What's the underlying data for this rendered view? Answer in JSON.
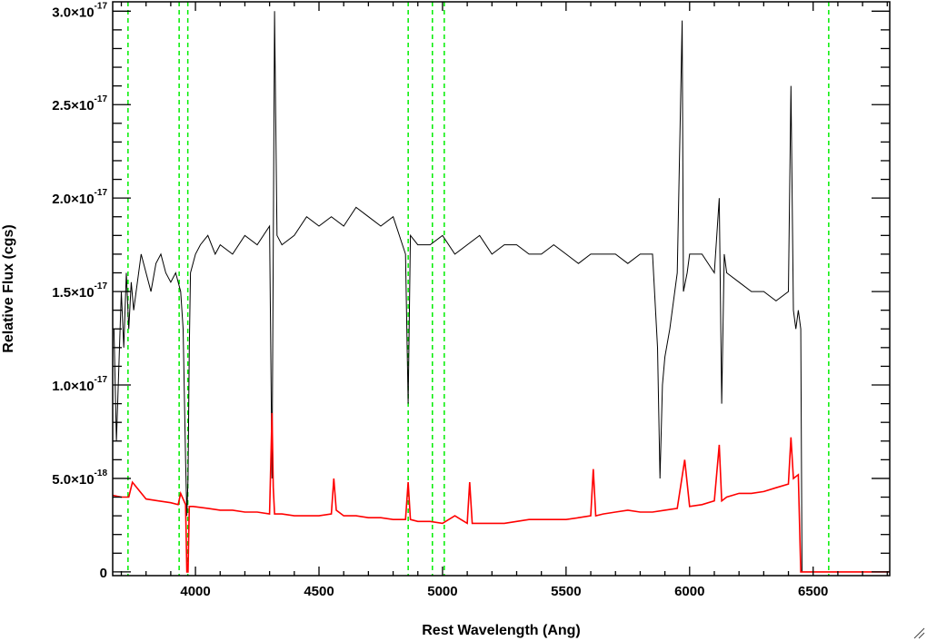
{
  "colors": {
    "spectrum": "#000000",
    "error": "#ff0000",
    "lines": "#00ee00",
    "background": "#ffffff"
  },
  "chart_data": {
    "type": "line",
    "title": "",
    "xlabel": "Rest Wavelength (Ang)",
    "ylabel": "Relative Flux (cgs)",
    "xlim": [
      3665,
      6810
    ],
    "ylim": [
      -0.02,
      3.05
    ],
    "y_scale_note": "values in units of 1e-17",
    "x_ticks": [
      4000,
      4500,
      5000,
      5500,
      6000,
      6500
    ],
    "x_tick_labels": [
      "4000",
      "4500",
      "5000",
      "5500",
      "6000",
      "6500"
    ],
    "y_ticks": [
      0,
      0.5,
      1.0,
      1.5,
      2.0,
      2.5,
      3.0
    ],
    "y_tick_labels": [
      {
        "mant": "0",
        "exp": ""
      },
      {
        "mant": "5.0×10",
        "exp": "-18"
      },
      {
        "mant": "1.0×10",
        "exp": "-17"
      },
      {
        "mant": "1.5×10",
        "exp": "-17"
      },
      {
        "mant": "2.0×10",
        "exp": "-17"
      },
      {
        "mant": "2.5×10",
        "exp": "-17"
      },
      {
        "mant": "3.0×10",
        "exp": "-17"
      }
    ],
    "vlines": [
      3727,
      3934,
      3969,
      4861,
      4959,
      5007,
      6563
    ],
    "series": [
      {
        "color": "#000000",
        "x": [
          3670,
          3680,
          3690,
          3700,
          3710,
          3720,
          3730,
          3740,
          3750,
          3760,
          3780,
          3800,
          3820,
          3840,
          3860,
          3880,
          3900,
          3920,
          3940,
          3950,
          3960,
          3965,
          3970,
          3975,
          3980,
          4000,
          4020,
          4050,
          4080,
          4100,
          4150,
          4200,
          4250,
          4300,
          4310,
          4320,
          4330,
          4350,
          4400,
          4450,
          4500,
          4550,
          4600,
          4650,
          4700,
          4750,
          4800,
          4850,
          4861,
          4870,
          4900,
          4950,
          5000,
          5050,
          5100,
          5150,
          5200,
          5250,
          5300,
          5350,
          5400,
          5450,
          5500,
          5550,
          5600,
          5650,
          5700,
          5750,
          5800,
          5850,
          5870,
          5880,
          5890,
          5900,
          5920,
          5950,
          5970,
          5975,
          5990,
          6000,
          6050,
          6100,
          6120,
          6130,
          6140,
          6150,
          6200,
          6250,
          6300,
          6350,
          6400,
          6410,
          6420,
          6430,
          6440,
          6450,
          6455
        ],
        "y": [
          1.3,
          0.7,
          1.1,
          1.5,
          1.2,
          1.6,
          1.3,
          1.55,
          1.4,
          1.5,
          1.7,
          1.6,
          1.5,
          1.65,
          1.7,
          1.6,
          1.55,
          1.6,
          1.5,
          1.3,
          0.6,
          0.3,
          0.5,
          1.2,
          1.6,
          1.7,
          1.75,
          1.8,
          1.7,
          1.75,
          1.7,
          1.8,
          1.75,
          1.85,
          0.5,
          3.0,
          1.8,
          1.75,
          1.8,
          1.9,
          1.85,
          1.9,
          1.85,
          1.95,
          1.9,
          1.85,
          1.9,
          1.7,
          0.9,
          1.8,
          1.75,
          1.75,
          1.8,
          1.7,
          1.75,
          1.8,
          1.7,
          1.75,
          1.75,
          1.7,
          1.7,
          1.75,
          1.7,
          1.65,
          1.7,
          1.7,
          1.7,
          1.65,
          1.7,
          1.7,
          1.2,
          0.5,
          1.0,
          1.15,
          1.3,
          1.6,
          2.95,
          1.5,
          1.6,
          1.7,
          1.7,
          1.6,
          2.0,
          0.9,
          1.7,
          1.6,
          1.55,
          1.5,
          1.5,
          1.45,
          1.5,
          2.6,
          1.4,
          1.3,
          1.4,
          1.3,
          0.0
        ]
      },
      {
        "color": "#ff0000",
        "x": [
          3665,
          3700,
          3730,
          3745,
          3800,
          3850,
          3900,
          3930,
          3940,
          3960,
          3965,
          3970,
          3975,
          3990,
          4050,
          4100,
          4150,
          4200,
          4250,
          4300,
          4310,
          4315,
          4320,
          4350,
          4400,
          4450,
          4500,
          4550,
          4560,
          4570,
          4600,
          4650,
          4700,
          4750,
          4800,
          4850,
          4861,
          4870,
          4900,
          4950,
          5000,
          5050,
          5100,
          5110,
          5120,
          5150,
          5200,
          5250,
          5300,
          5350,
          5400,
          5450,
          5500,
          5550,
          5600,
          5610,
          5620,
          5650,
          5700,
          5750,
          5800,
          5850,
          5900,
          5950,
          5980,
          6000,
          6050,
          6100,
          6120,
          6130,
          6150,
          6200,
          6250,
          6300,
          6350,
          6400,
          6410,
          6420,
          6440,
          6450,
          6455,
          6460,
          6470,
          6810
        ],
        "y": [
          0.41,
          0.4,
          0.4,
          0.48,
          0.39,
          0.38,
          0.37,
          0.36,
          0.42,
          0.36,
          0.0,
          0.0,
          0.35,
          0.35,
          0.34,
          0.33,
          0.33,
          0.32,
          0.32,
          0.31,
          0.85,
          0.45,
          0.31,
          0.31,
          0.3,
          0.3,
          0.3,
          0.31,
          0.5,
          0.33,
          0.3,
          0.3,
          0.29,
          0.29,
          0.28,
          0.28,
          0.48,
          0.28,
          0.27,
          0.27,
          0.26,
          0.3,
          0.26,
          0.48,
          0.26,
          0.26,
          0.26,
          0.26,
          0.27,
          0.28,
          0.28,
          0.28,
          0.28,
          0.29,
          0.3,
          0.55,
          0.3,
          0.31,
          0.32,
          0.33,
          0.32,
          0.32,
          0.33,
          0.34,
          0.6,
          0.35,
          0.36,
          0.38,
          0.68,
          0.38,
          0.4,
          0.42,
          0.42,
          0.43,
          0.45,
          0.47,
          0.72,
          0.5,
          0.52,
          0.0,
          0.0,
          0.0,
          0.0,
          0.0
        ]
      }
    ]
  }
}
